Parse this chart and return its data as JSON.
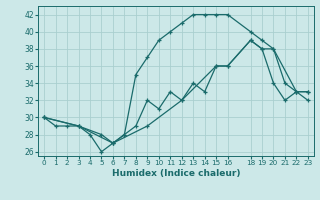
{
  "xlabel": "Humidex (Indice chaleur)",
  "xlim": [
    -0.5,
    23.5
  ],
  "ylim": [
    25.5,
    43
  ],
  "xticks": [
    0,
    1,
    2,
    3,
    4,
    5,
    6,
    7,
    8,
    9,
    10,
    11,
    12,
    13,
    14,
    15,
    16,
    18,
    19,
    20,
    21,
    22,
    23
  ],
  "yticks": [
    26,
    28,
    30,
    32,
    34,
    36,
    38,
    40,
    42
  ],
  "bg_color": "#cce8e8",
  "line_color": "#1a6b6b",
  "grid_color": "#aacfcf",
  "line1_x": [
    0,
    1,
    2,
    3,
    4,
    5,
    6,
    7,
    8,
    9,
    10,
    11,
    12,
    13,
    14,
    15,
    16,
    18,
    19,
    20,
    21,
    22,
    23
  ],
  "line1_y": [
    30,
    29,
    29,
    29,
    28,
    26,
    27,
    28,
    35,
    37,
    39,
    40,
    41,
    42,
    42,
    42,
    42,
    40,
    39,
    38,
    34,
    33,
    32
  ],
  "line2_x": [
    0,
    3,
    5,
    6,
    7,
    8,
    9,
    10,
    11,
    12,
    13,
    14,
    15,
    16,
    18,
    19,
    20,
    21,
    22,
    23
  ],
  "line2_y": [
    30,
    29,
    28,
    27,
    28,
    29,
    32,
    31,
    33,
    32,
    34,
    33,
    36,
    36,
    39,
    38,
    34,
    32,
    33,
    33
  ],
  "line3_x": [
    0,
    3,
    6,
    9,
    12,
    15,
    16,
    18,
    19,
    20,
    22,
    23
  ],
  "line3_y": [
    30,
    29,
    27,
    29,
    32,
    36,
    36,
    39,
    38,
    38,
    33,
    33
  ]
}
